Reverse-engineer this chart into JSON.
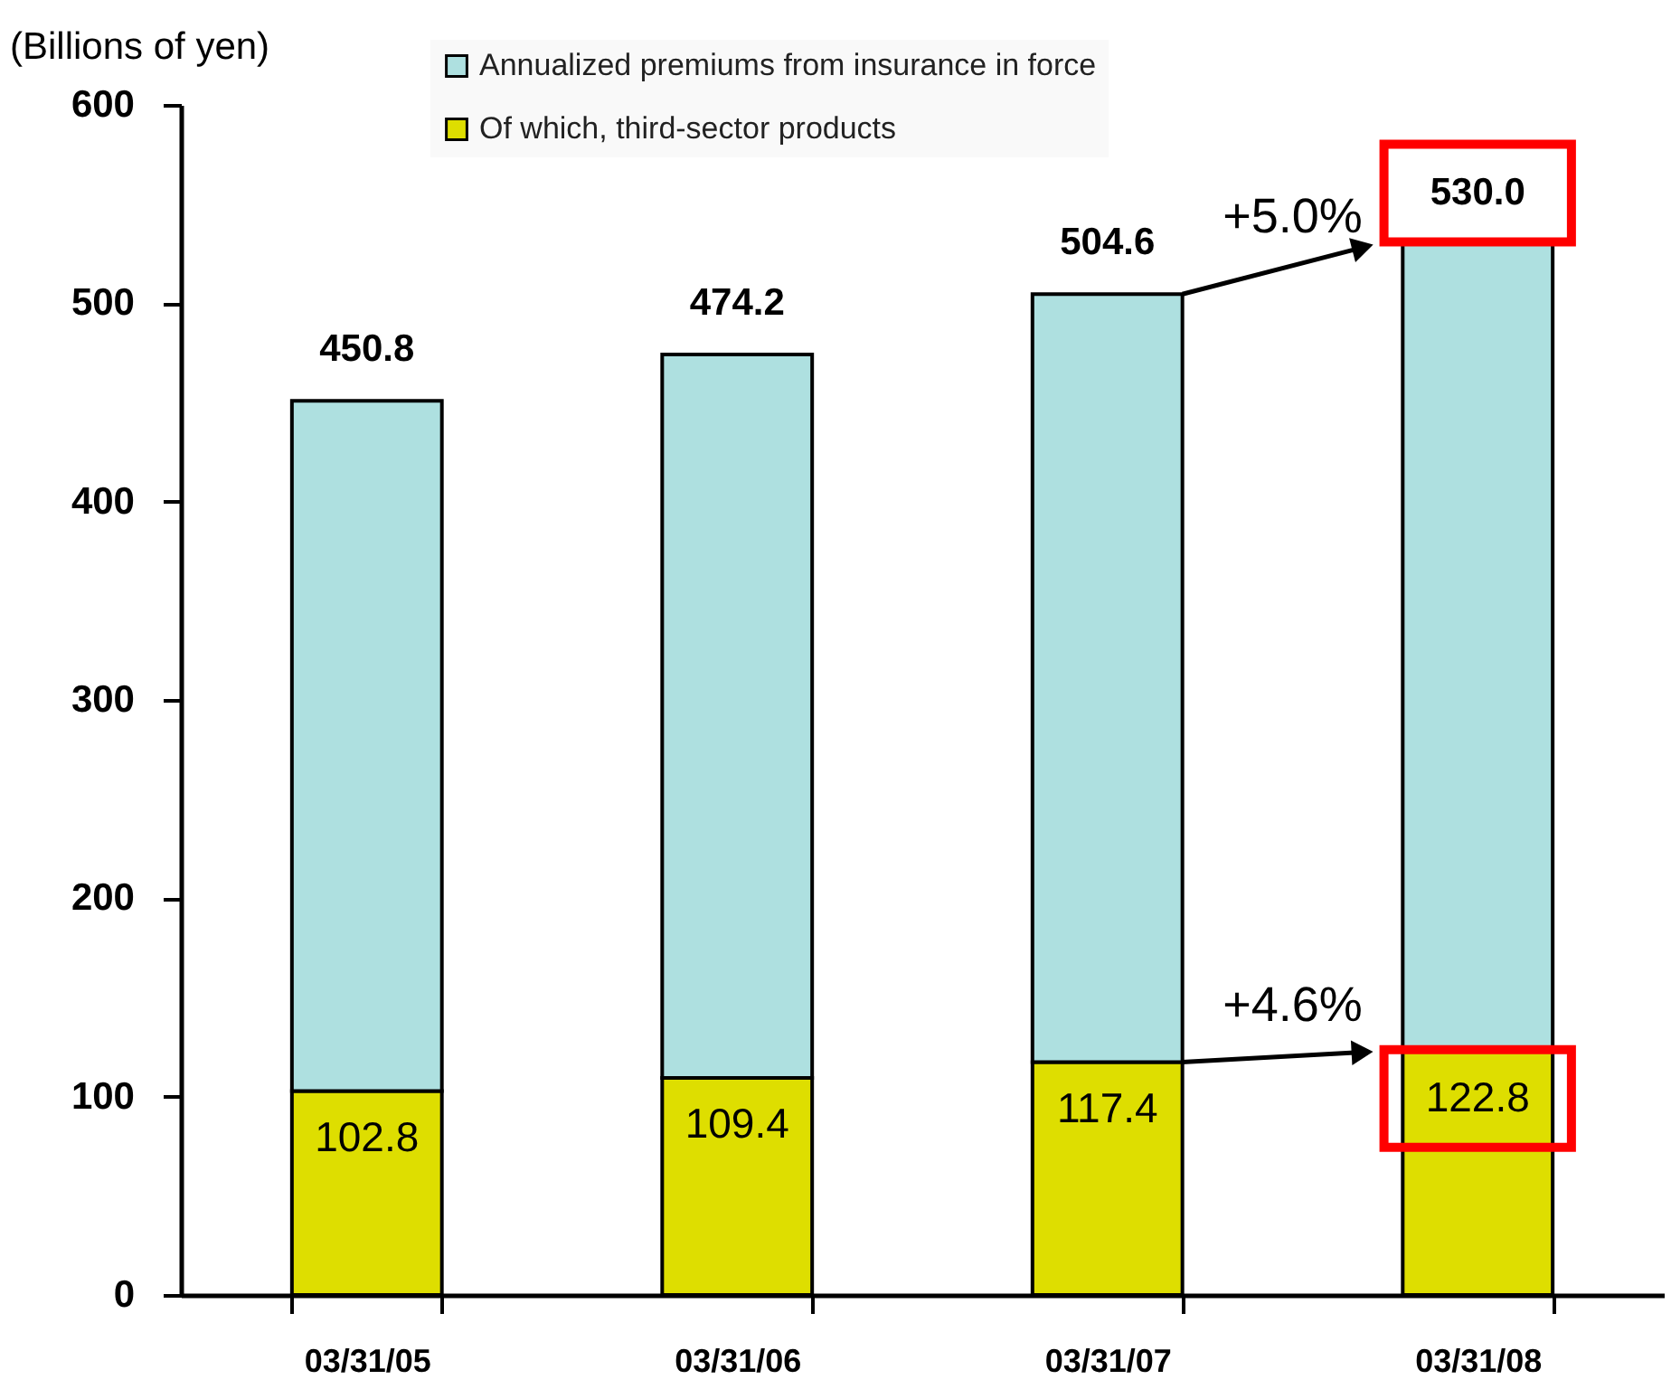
{
  "chart_data": {
    "type": "bar",
    "ylabel": "(Billions of yen)",
    "categories": [
      "03/31/05",
      "03/31/06",
      "03/31/07",
      "03/31/08"
    ],
    "stacked": true,
    "series": [
      {
        "name": "Of which, third-sector products",
        "color": "#dede00",
        "values": [
          102.8,
          109.4,
          117.4,
          122.8
        ],
        "value_labels": [
          "102.8",
          "109.4",
          "117.4",
          "122.8"
        ]
      },
      {
        "name": "Annualized premiums from insurance in force",
        "color": "#aee0e0",
        "values": [
          348.0,
          364.8,
          387.2,
          407.2
        ]
      }
    ],
    "totals": [
      "450.8",
      "474.2",
      "504.6",
      "530.0"
    ],
    "ylim": [
      0,
      600
    ],
    "yticks": [
      0,
      100,
      200,
      300,
      400,
      500,
      600
    ],
    "legend": "top",
    "annotations": [
      {
        "text": "+5.0%",
        "x": "03/31/08",
        "y": 530.0
      },
      {
        "text": "+4.6%",
        "x": "03/31/08",
        "y": 122.8
      }
    ]
  }
}
